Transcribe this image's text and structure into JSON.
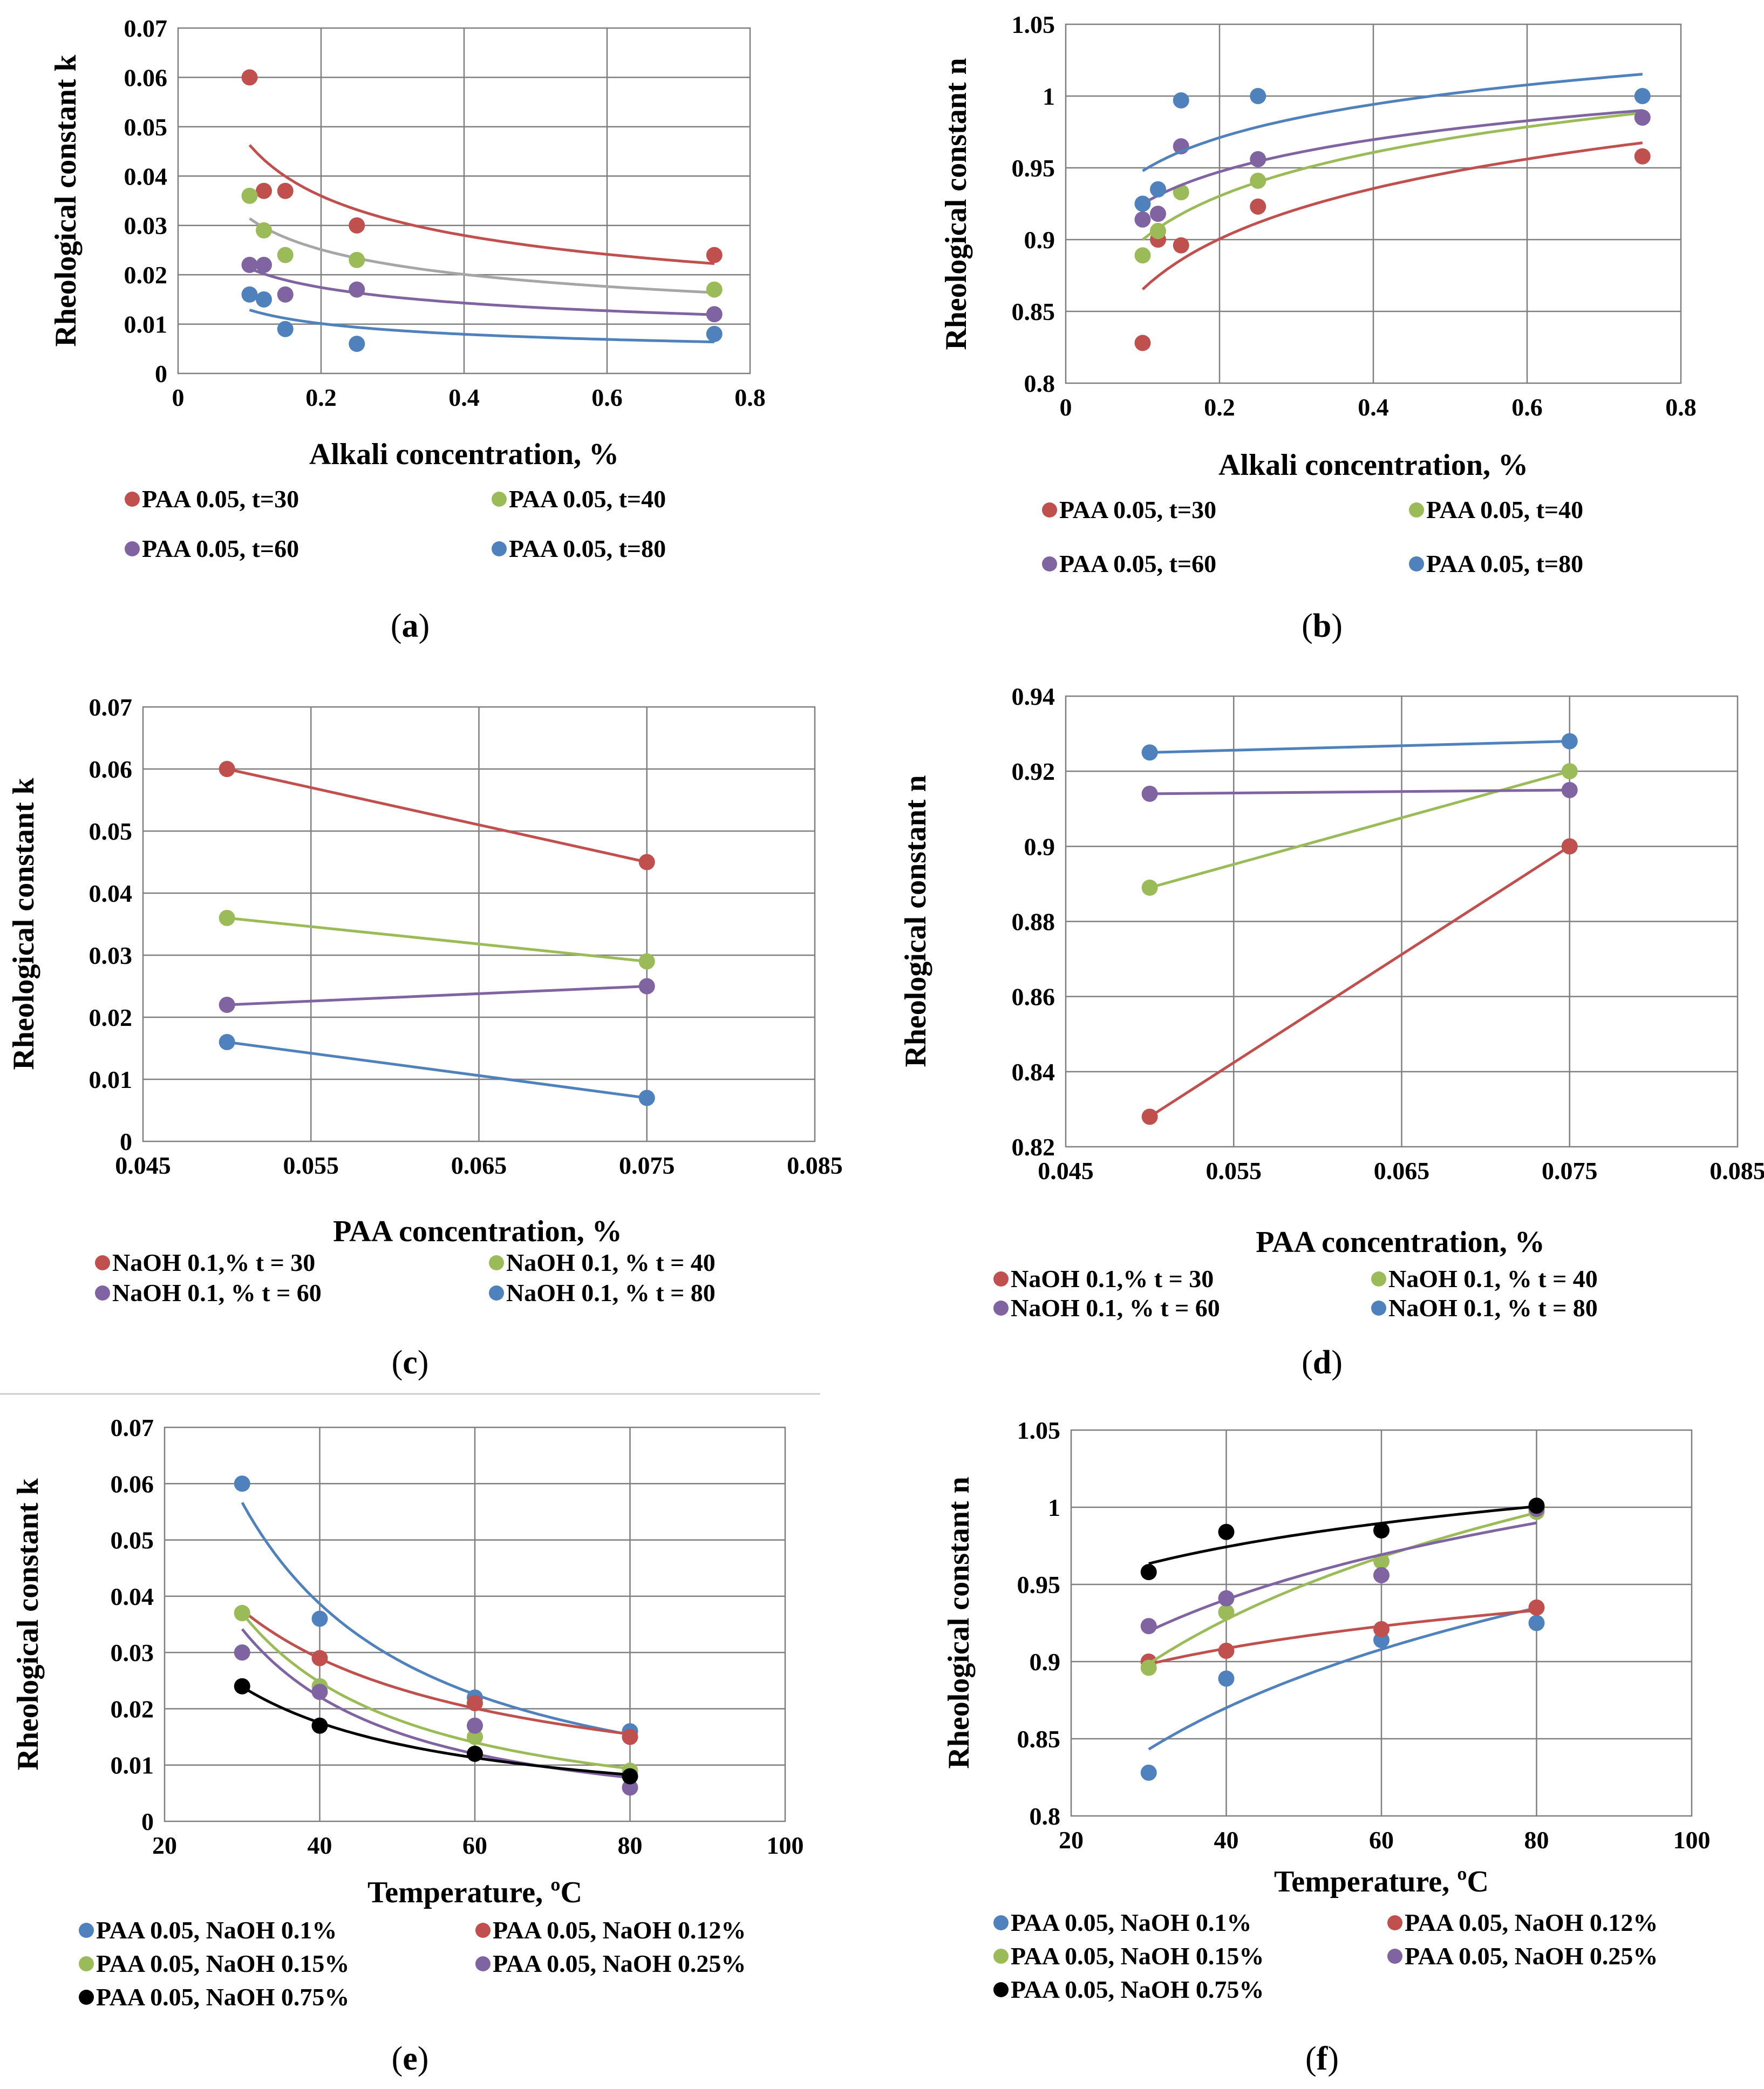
{
  "colors": {
    "red": "#c0504d",
    "green": "#9bbb59",
    "purple": "#8064a2",
    "blue": "#4f81bd",
    "black": "#000000",
    "gray": "#a6a6a6"
  },
  "chart_data": [
    {
      "id": "a",
      "panel_label": "a",
      "type": "scatter",
      "xlabel": "Alkali concentration, %",
      "ylabel": "Rheological constant k",
      "xlim": [
        0,
        0.8
      ],
      "ylim": [
        0,
        0.07
      ],
      "xticks": [
        "0",
        "0.2",
        "0.4",
        "0.6",
        "0.8"
      ],
      "yticks": [
        "0",
        "0.01",
        "0.02",
        "0.03",
        "0.04",
        "0.05",
        "0.06",
        "0.07"
      ],
      "series": [
        {
          "name": "PAA 0.05, t=30",
          "color": "red",
          "x": [
            0.1,
            0.12,
            0.15,
            0.25,
            0.75
          ],
          "y": [
            0.06,
            0.037,
            0.037,
            0.03,
            0.024
          ],
          "trend": "power",
          "trend_range": [
            0.1,
            0.75
          ]
        },
        {
          "name": "PAA 0.05, t=40",
          "color": "green",
          "trend_color": "gray",
          "x": [
            0.1,
            0.12,
            0.15,
            0.25,
            0.75
          ],
          "y": [
            0.036,
            0.029,
            0.024,
            0.023,
            0.017
          ],
          "trend": "power",
          "trend_range": [
            0.1,
            0.75
          ]
        },
        {
          "name": "PAA 0.05, t=60",
          "color": "purple",
          "x": [
            0.1,
            0.12,
            0.15,
            0.25,
            0.75
          ],
          "y": [
            0.022,
            0.022,
            0.016,
            0.017,
            0.012
          ],
          "trend": "power",
          "trend_range": [
            0.1,
            0.75
          ]
        },
        {
          "name": "PAA 0.05, t=80",
          "color": "blue",
          "x": [
            0.1,
            0.12,
            0.15,
            0.25,
            0.75
          ],
          "y": [
            0.016,
            0.015,
            0.009,
            0.006,
            0.008
          ],
          "trend": "power",
          "trend_range": [
            0.1,
            0.75
          ]
        }
      ]
    },
    {
      "id": "b",
      "panel_label": "b",
      "type": "scatter",
      "xlabel": "Alkali concentration, %",
      "ylabel": "Rheological constant n",
      "xlim": [
        0,
        0.8
      ],
      "ylim": [
        0.8,
        1.05
      ],
      "xticks": [
        "0",
        "0.2",
        "0.4",
        "0.6",
        "0.8"
      ],
      "yticks": [
        "0.8",
        "0.85",
        "0.9",
        "0.95",
        "1",
        "1.05"
      ],
      "series": [
        {
          "name": "PAA 0.05, t=30",
          "color": "red",
          "x": [
            0.1,
            0.12,
            0.15,
            0.25,
            0.75
          ],
          "y": [
            0.828,
            0.9,
            0.896,
            0.923,
            0.958
          ],
          "trend": "log",
          "trend_range": [
            0.1,
            0.75
          ]
        },
        {
          "name": "PAA 0.05, t=40",
          "color": "green",
          "x": [
            0.1,
            0.12,
            0.15,
            0.25,
            0.75
          ],
          "y": [
            0.889,
            0.906,
            0.933,
            0.941,
            0.985
          ],
          "trend": "log",
          "trend_range": [
            0.1,
            0.75
          ]
        },
        {
          "name": "PAA 0.05, t=60",
          "color": "purple",
          "x": [
            0.1,
            0.12,
            0.15,
            0.25,
            0.75
          ],
          "y": [
            0.914,
            0.918,
            0.965,
            0.956,
            0.985
          ],
          "trend": "log",
          "trend_range": [
            0.1,
            0.75
          ]
        },
        {
          "name": "PAA 0.05, t=80",
          "color": "blue",
          "x": [
            0.1,
            0.12,
            0.15,
            0.25,
            0.75
          ],
          "y": [
            0.925,
            0.935,
            0.997,
            1.0,
            1.0
          ],
          "trend": "log",
          "trend_range": [
            0.1,
            0.75
          ]
        }
      ]
    },
    {
      "id": "c",
      "panel_label": "c",
      "type": "line",
      "xlabel": "PAA concentration, %",
      "ylabel": "Rheological constant k",
      "xlim": [
        0.045,
        0.085
      ],
      "ylim": [
        0,
        0.07
      ],
      "xticks": [
        "0.045",
        "0.055",
        "0.065",
        "0.075",
        "0.085"
      ],
      "yticks": [
        "0",
        "0.01",
        "0.02",
        "0.03",
        "0.04",
        "0.05",
        "0.06",
        "0.07"
      ],
      "series": [
        {
          "name": "NaOH 0.1,%  t = 30",
          "color": "red",
          "x": [
            0.05,
            0.075
          ],
          "y": [
            0.06,
            0.045
          ]
        },
        {
          "name": "NaOH 0.1, % t = 40",
          "color": "green",
          "x": [
            0.05,
            0.075
          ],
          "y": [
            0.036,
            0.029
          ]
        },
        {
          "name": "NaOH 0.1, % t = 60",
          "color": "purple",
          "x": [
            0.05,
            0.075
          ],
          "y": [
            0.022,
            0.025
          ]
        },
        {
          "name": "NaOH 0.1, % t = 80",
          "color": "blue",
          "x": [
            0.05,
            0.075
          ],
          "y": [
            0.016,
            0.007
          ]
        }
      ]
    },
    {
      "id": "d",
      "panel_label": "d",
      "type": "line",
      "xlabel": "PAA concentration, %",
      "ylabel": "Rheological constant n",
      "xlim": [
        0.045,
        0.085
      ],
      "ylim": [
        0.82,
        0.94
      ],
      "xticks": [
        "0.045",
        "0.055",
        "0.065",
        "0.075",
        "0.085"
      ],
      "yticks": [
        "0.82",
        "0.84",
        "0.86",
        "0.88",
        "0.9",
        "0.92",
        "0.94"
      ],
      "series": [
        {
          "name": "NaOH 0.1,%  t = 30",
          "color": "red",
          "x": [
            0.05,
            0.075
          ],
          "y": [
            0.828,
            0.9
          ]
        },
        {
          "name": "NaOH 0.1, % t = 40",
          "color": "green",
          "x": [
            0.05,
            0.075
          ],
          "y": [
            0.889,
            0.92
          ]
        },
        {
          "name": "NaOH 0.1, % t = 60",
          "color": "purple",
          "x": [
            0.05,
            0.075
          ],
          "y": [
            0.914,
            0.915
          ]
        },
        {
          "name": "NaOH 0.1, % t = 80",
          "color": "blue",
          "x": [
            0.05,
            0.075
          ],
          "y": [
            0.925,
            0.928
          ]
        }
      ]
    },
    {
      "id": "e",
      "panel_label": "e",
      "type": "scatter",
      "xlabel": "Temperature, ºC",
      "ylabel": "Rheological constant k",
      "xlim": [
        20,
        100
      ],
      "ylim": [
        0,
        0.07
      ],
      "xticks": [
        "20",
        "40",
        "60",
        "80",
        "100"
      ],
      "yticks": [
        "0",
        "0.01",
        "0.02",
        "0.03",
        "0.04",
        "0.05",
        "0.06",
        "0.07"
      ],
      "series": [
        {
          "name": "PAA 0.05, NaOH 0.1%",
          "color": "blue",
          "x": [
            30,
            40,
            60,
            80
          ],
          "y": [
            0.06,
            0.036,
            0.022,
            0.016
          ],
          "trend": "power",
          "trend_range": [
            30,
            80
          ]
        },
        {
          "name": "PAA 0.05, NaOH 0.12%",
          "color": "red",
          "x": [
            30,
            40,
            60,
            80
          ],
          "y": [
            0.037,
            0.029,
            0.021,
            0.015
          ],
          "trend": "power",
          "trend_range": [
            30,
            80
          ]
        },
        {
          "name": "PAA 0.05, NaOH 0.15%",
          "color": "green",
          "x": [
            30,
            40,
            60,
            80
          ],
          "y": [
            0.037,
            0.024,
            0.015,
            0.009
          ],
          "trend": "power",
          "trend_range": [
            30,
            80
          ]
        },
        {
          "name": "PAA 0.05, NaOH 0.25%",
          "color": "purple",
          "x": [
            30,
            40,
            60,
            80
          ],
          "y": [
            0.03,
            0.023,
            0.017,
            0.006
          ],
          "trend": "power",
          "trend_range": [
            30,
            80
          ]
        },
        {
          "name": "PAA 0.05, NaOH 0.75%",
          "color": "black",
          "x": [
            30,
            40,
            60,
            80
          ],
          "y": [
            0.024,
            0.017,
            0.012,
            0.008
          ],
          "trend": "power",
          "trend_range": [
            30,
            80
          ]
        }
      ]
    },
    {
      "id": "f",
      "panel_label": "f",
      "type": "scatter",
      "xlabel": "Temperature, ºC",
      "ylabel": "Rheological constant n",
      "xlim": [
        20,
        100
      ],
      "ylim": [
        0.8,
        1.05
      ],
      "xticks": [
        "20",
        "40",
        "60",
        "80",
        "100"
      ],
      "yticks": [
        "0.8",
        "0.85",
        "0.9",
        "0.95",
        "1",
        "1.05"
      ],
      "series": [
        {
          "name": "PAA 0.05, NaOH 0.1%",
          "color": "blue",
          "x": [
            30,
            40,
            60,
            80
          ],
          "y": [
            0.828,
            0.889,
            0.914,
            0.925
          ],
          "trend": "log",
          "trend_range": [
            30,
            80
          ]
        },
        {
          "name": "PAA 0.05, NaOH 0.12%",
          "color": "red",
          "x": [
            30,
            40,
            60,
            80
          ],
          "y": [
            0.9,
            0.907,
            0.921,
            0.935
          ],
          "trend": "log",
          "trend_range": [
            30,
            80
          ]
        },
        {
          "name": "PAA 0.05, NaOH 0.15%",
          "color": "green",
          "x": [
            30,
            40,
            60,
            80
          ],
          "y": [
            0.896,
            0.932,
            0.965,
            0.997
          ],
          "trend": "log",
          "trend_range": [
            30,
            80
          ]
        },
        {
          "name": "PAA 0.05, NaOH 0.25%",
          "color": "purple",
          "x": [
            30,
            40,
            60,
            80
          ],
          "y": [
            0.923,
            0.941,
            0.956,
            0.999
          ],
          "trend": "log",
          "trend_range": [
            30,
            80
          ]
        },
        {
          "name": "PAA 0.05, NaOH 0.75%",
          "color": "black",
          "x": [
            30,
            40,
            60,
            80
          ],
          "y": [
            0.958,
            0.984,
            0.985,
            1.001
          ],
          "trend": "log",
          "trend_range": [
            30,
            80
          ]
        }
      ]
    }
  ]
}
